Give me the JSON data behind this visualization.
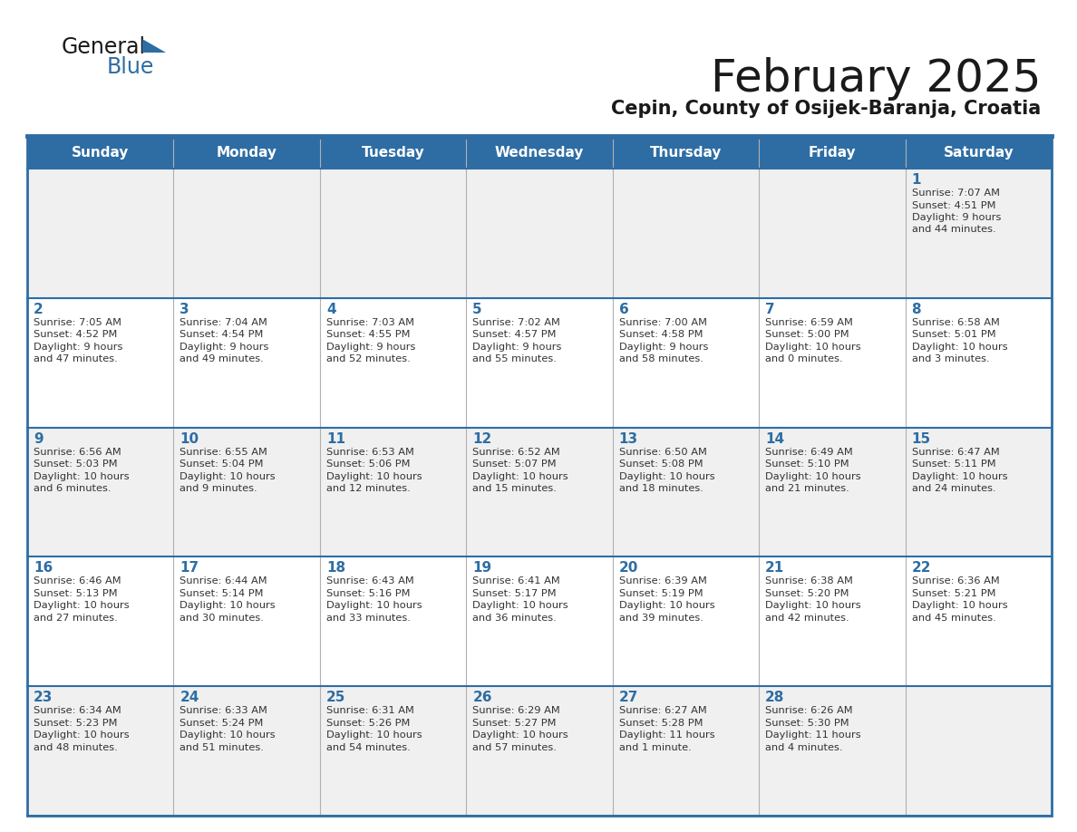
{
  "title": "February 2025",
  "subtitle": "Cepin, County of Osijek-Baranja, Croatia",
  "header_bg": "#2e6da4",
  "header_text": "#ffffff",
  "row_bg_odd": "#f0f0f0",
  "row_bg_even": "#ffffff",
  "border_color": "#2e6da4",
  "day_headers": [
    "Sunday",
    "Monday",
    "Tuesday",
    "Wednesday",
    "Thursday",
    "Friday",
    "Saturday"
  ],
  "title_color": "#1a1a1a",
  "subtitle_color": "#1a1a1a",
  "cell_text_color": "#333333",
  "day_number_color": "#2e6da4",
  "calendar": [
    [
      null,
      null,
      null,
      null,
      null,
      null,
      {
        "day": "1",
        "sunrise": "7:07 AM",
        "sunset": "4:51 PM",
        "daylight_h": "9 hours",
        "daylight_m": "and 44 minutes."
      }
    ],
    [
      {
        "day": "2",
        "sunrise": "7:05 AM",
        "sunset": "4:52 PM",
        "daylight_h": "9 hours",
        "daylight_m": "and 47 minutes."
      },
      {
        "day": "3",
        "sunrise": "7:04 AM",
        "sunset": "4:54 PM",
        "daylight_h": "9 hours",
        "daylight_m": "and 49 minutes."
      },
      {
        "day": "4",
        "sunrise": "7:03 AM",
        "sunset": "4:55 PM",
        "daylight_h": "9 hours",
        "daylight_m": "and 52 minutes."
      },
      {
        "day": "5",
        "sunrise": "7:02 AM",
        "sunset": "4:57 PM",
        "daylight_h": "9 hours",
        "daylight_m": "and 55 minutes."
      },
      {
        "day": "6",
        "sunrise": "7:00 AM",
        "sunset": "4:58 PM",
        "daylight_h": "9 hours",
        "daylight_m": "and 58 minutes."
      },
      {
        "day": "7",
        "sunrise": "6:59 AM",
        "sunset": "5:00 PM",
        "daylight_h": "10 hours",
        "daylight_m": "and 0 minutes."
      },
      {
        "day": "8",
        "sunrise": "6:58 AM",
        "sunset": "5:01 PM",
        "daylight_h": "10 hours",
        "daylight_m": "and 3 minutes."
      }
    ],
    [
      {
        "day": "9",
        "sunrise": "6:56 AM",
        "sunset": "5:03 PM",
        "daylight_h": "10 hours",
        "daylight_m": "and 6 minutes."
      },
      {
        "day": "10",
        "sunrise": "6:55 AM",
        "sunset": "5:04 PM",
        "daylight_h": "10 hours",
        "daylight_m": "and 9 minutes."
      },
      {
        "day": "11",
        "sunrise": "6:53 AM",
        "sunset": "5:06 PM",
        "daylight_h": "10 hours",
        "daylight_m": "and 12 minutes."
      },
      {
        "day": "12",
        "sunrise": "6:52 AM",
        "sunset": "5:07 PM",
        "daylight_h": "10 hours",
        "daylight_m": "and 15 minutes."
      },
      {
        "day": "13",
        "sunrise": "6:50 AM",
        "sunset": "5:08 PM",
        "daylight_h": "10 hours",
        "daylight_m": "and 18 minutes."
      },
      {
        "day": "14",
        "sunrise": "6:49 AM",
        "sunset": "5:10 PM",
        "daylight_h": "10 hours",
        "daylight_m": "and 21 minutes."
      },
      {
        "day": "15",
        "sunrise": "6:47 AM",
        "sunset": "5:11 PM",
        "daylight_h": "10 hours",
        "daylight_m": "and 24 minutes."
      }
    ],
    [
      {
        "day": "16",
        "sunrise": "6:46 AM",
        "sunset": "5:13 PM",
        "daylight_h": "10 hours",
        "daylight_m": "and 27 minutes."
      },
      {
        "day": "17",
        "sunrise": "6:44 AM",
        "sunset": "5:14 PM",
        "daylight_h": "10 hours",
        "daylight_m": "and 30 minutes."
      },
      {
        "day": "18",
        "sunrise": "6:43 AM",
        "sunset": "5:16 PM",
        "daylight_h": "10 hours",
        "daylight_m": "and 33 minutes."
      },
      {
        "day": "19",
        "sunrise": "6:41 AM",
        "sunset": "5:17 PM",
        "daylight_h": "10 hours",
        "daylight_m": "and 36 minutes."
      },
      {
        "day": "20",
        "sunrise": "6:39 AM",
        "sunset": "5:19 PM",
        "daylight_h": "10 hours",
        "daylight_m": "and 39 minutes."
      },
      {
        "day": "21",
        "sunrise": "6:38 AM",
        "sunset": "5:20 PM",
        "daylight_h": "10 hours",
        "daylight_m": "and 42 minutes."
      },
      {
        "day": "22",
        "sunrise": "6:36 AM",
        "sunset": "5:21 PM",
        "daylight_h": "10 hours",
        "daylight_m": "and 45 minutes."
      }
    ],
    [
      {
        "day": "23",
        "sunrise": "6:34 AM",
        "sunset": "5:23 PM",
        "daylight_h": "10 hours",
        "daylight_m": "and 48 minutes."
      },
      {
        "day": "24",
        "sunrise": "6:33 AM",
        "sunset": "5:24 PM",
        "daylight_h": "10 hours",
        "daylight_m": "and 51 minutes."
      },
      {
        "day": "25",
        "sunrise": "6:31 AM",
        "sunset": "5:26 PM",
        "daylight_h": "10 hours",
        "daylight_m": "and 54 minutes."
      },
      {
        "day": "26",
        "sunrise": "6:29 AM",
        "sunset": "5:27 PM",
        "daylight_h": "10 hours",
        "daylight_m": "and 57 minutes."
      },
      {
        "day": "27",
        "sunrise": "6:27 AM",
        "sunset": "5:28 PM",
        "daylight_h": "11 hours",
        "daylight_m": "and 1 minute."
      },
      {
        "day": "28",
        "sunrise": "6:26 AM",
        "sunset": "5:30 PM",
        "daylight_h": "11 hours",
        "daylight_m": "and 4 minutes."
      },
      null
    ]
  ]
}
